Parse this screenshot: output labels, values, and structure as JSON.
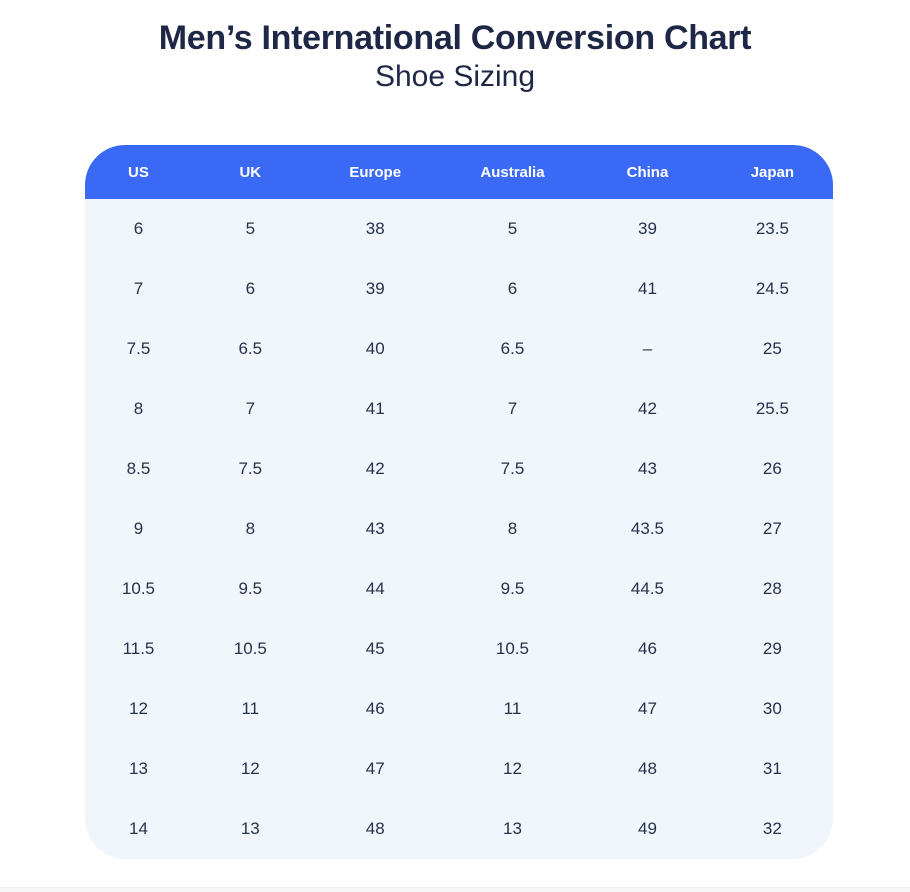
{
  "page": {
    "title": "Men’s International Conversion Chart",
    "subtitle": "Shoe Sizing"
  },
  "chart_data": {
    "type": "table",
    "title": "Men’s International Conversion Chart",
    "subtitle": "Shoe Sizing",
    "columns": [
      "US",
      "UK",
      "Europe",
      "Australia",
      "China",
      "Japan"
    ],
    "rows": [
      [
        "6",
        "5",
        "38",
        "5",
        "39",
        "23.5"
      ],
      [
        "7",
        "6",
        "39",
        "6",
        "41",
        "24.5"
      ],
      [
        "7.5",
        "6.5",
        "40",
        "6.5",
        "–",
        "25"
      ],
      [
        "8",
        "7",
        "41",
        "7",
        "42",
        "25.5"
      ],
      [
        "8.5",
        "7.5",
        "42",
        "7.5",
        "43",
        "26"
      ],
      [
        "9",
        "8",
        "43",
        "8",
        "43.5",
        "27"
      ],
      [
        "10.5",
        "9.5",
        "44",
        "9.5",
        "44.5",
        "28"
      ],
      [
        "11.5",
        "10.5",
        "45",
        "10.5",
        "46",
        "29"
      ],
      [
        "12",
        "11",
        "46",
        "11",
        "47",
        "30"
      ],
      [
        "13",
        "12",
        "47",
        "12",
        "48",
        "31"
      ],
      [
        "14",
        "13",
        "48",
        "13",
        "49",
        "32"
      ]
    ]
  },
  "colors": {
    "header_bg": "#3a6af5",
    "row_bg": "#f1f6fd",
    "title_text": "#1e2746",
    "cell_text": "#273149",
    "header_text": "#ffffff",
    "footer_strip": "#f7f7f7"
  }
}
